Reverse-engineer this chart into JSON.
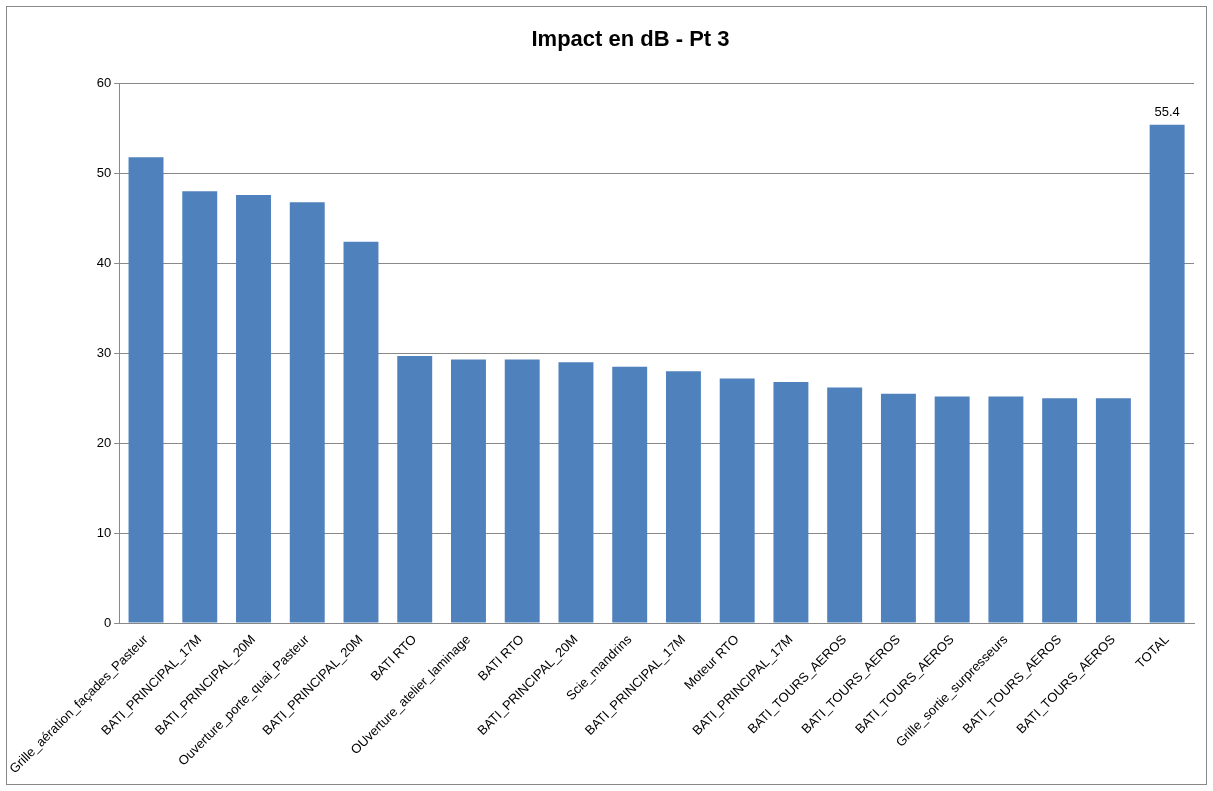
{
  "chart_data": {
    "type": "bar",
    "title": "Impact en dB - Pt 3",
    "categories": [
      "Grille_aération_façades_Pasteur",
      "BATI_PRINCIPAL_17M",
      "BATI_PRINCIPAL_20M",
      "Ouverture_porte_quai_Pasteur",
      "BATI_PRINCIPAL_20M",
      "BATI RTO",
      "OUverture_atelier_laminage",
      "BATI RTO",
      "BATI_PRINCIPAL_20M",
      "Scie_mandrins",
      "BATI_PRINCIPAL_17M",
      "Moteur RTO",
      "BATI_PRINCIPAL_17M",
      "BATI_TOURS_AEROS",
      "BATI_TOURS_AEROS",
      "BATI_TOURS_AEROS",
      "Grille_sortie_surpresseurs",
      "BATI_TOURS_AEROS",
      "BATI_TOURS_AEROS",
      "TOTAL"
    ],
    "values": [
      51.8,
      48.0,
      47.6,
      46.8,
      42.4,
      29.7,
      29.3,
      29.3,
      29.0,
      28.5,
      28.0,
      27.2,
      26.8,
      26.2,
      25.5,
      25.2,
      25.2,
      25.0,
      25.0,
      55.4
    ],
    "value_labels": [
      null,
      null,
      null,
      null,
      null,
      null,
      null,
      null,
      null,
      null,
      null,
      null,
      null,
      null,
      null,
      null,
      null,
      null,
      null,
      "55.4"
    ],
    "color": "#4f81bd",
    "ylim": [
      0,
      60
    ],
    "yticks": [
      0,
      10,
      20,
      30,
      40,
      50,
      60
    ],
    "grid": "y"
  }
}
